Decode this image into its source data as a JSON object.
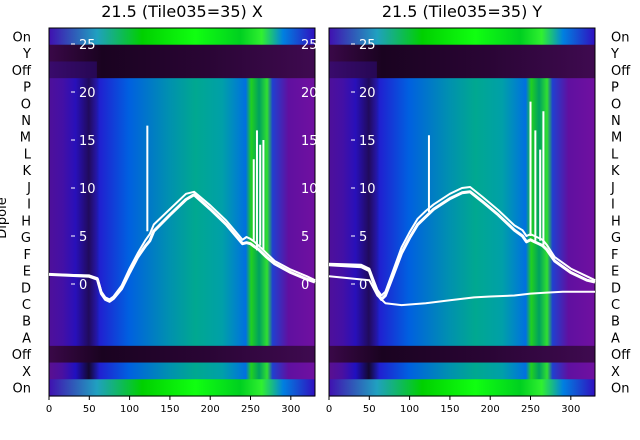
{
  "chart_data": {
    "type": "heatmap",
    "ylabel": "Dipole",
    "row_labels": [
      "On",
      "Y",
      "Off",
      "P",
      "O",
      "N",
      "M",
      "L",
      "K",
      "J",
      "I",
      "H",
      "G",
      "F",
      "E",
      "D",
      "C",
      "B",
      "A",
      "Off",
      "X",
      "On"
    ],
    "x_ticks": [
      0,
      50,
      100,
      150,
      200,
      250,
      300
    ],
    "xlim": [
      0,
      330
    ],
    "overlay_yticks": [
      0,
      5,
      10,
      15,
      20,
      25
    ],
    "panels": [
      {
        "title": "21.5 (Tile035=35) X",
        "curves": [
          {
            "x": [
              0,
              50,
              60,
              65,
              70,
              75,
              80,
              90,
              100,
              110,
              120,
              125,
              130,
              150,
              170,
              180,
              200,
              220,
              240,
              245,
              250,
              255,
              260,
              265,
              270,
              280,
              300,
              320,
              330
            ],
            "y": [
              1,
              0.8,
              0.5,
              -1,
              -1.6,
              -1.8,
              -1.5,
              -0.5,
              1.2,
              2.8,
              4.0,
              4.5,
              5.5,
              7.2,
              8.8,
              9.3,
              7.8,
              6.2,
              4.2,
              4.3,
              4.2,
              3.9,
              3.6,
              3.2,
              2.8,
              2.1,
              1.2,
              0.5,
              0.2
            ]
          },
          {
            "x": [
              0,
              50,
              60,
              65,
              70,
              75,
              80,
              90,
              100,
              110,
              120,
              125,
              130,
              150,
              170,
              180,
              200,
              220,
              240,
              245,
              250,
              255,
              260,
              265,
              270,
              280,
              300,
              320,
              330
            ],
            "y": [
              1,
              0.9,
              0.6,
              -0.8,
              -1.4,
              -1.6,
              -1.3,
              -0.2,
              1.6,
              3.2,
              4.6,
              5.2,
              6.2,
              7.8,
              9.4,
              9.6,
              8.2,
              6.6,
              4.6,
              4.9,
              4.7,
              4.4,
              4.0,
              3.6,
              3.2,
              2.4,
              1.5,
              0.8,
              0.4
            ]
          }
        ],
        "spikes": [
          {
            "x": 122,
            "y_top": 16.5,
            "y_base": 5.5
          },
          {
            "x": 254,
            "y_top": 13,
            "y_base": 4.5
          },
          {
            "x": 258,
            "y_top": 16,
            "y_base": 3.5
          },
          {
            "x": 262,
            "y_top": 14.5,
            "y_base": 4
          },
          {
            "x": 266,
            "y_top": 15,
            "y_base": 3.5
          }
        ]
      },
      {
        "title": "21.5 (Tile035=35) Y",
        "curves": [
          {
            "x": [
              0,
              40,
              50,
              55,
              60,
              65,
              70,
              80,
              90,
              100,
              110,
              120,
              130,
              150,
              165,
              175,
              190,
              210,
              230,
              240,
              245,
              250,
              255,
              260,
              265,
              270,
              280,
              300,
              320,
              330
            ],
            "y": [
              2,
              1.8,
              1.4,
              0.2,
              -1,
              -1.6,
              -1.2,
              1,
              3.2,
              4.8,
              6.2,
              7.0,
              7.8,
              8.9,
              9.5,
              9.6,
              8.6,
              7.2,
              5.6,
              5.0,
              4.4,
              4.6,
              4.4,
              4.2,
              4.0,
              3.6,
              2.4,
              1.2,
              0.4,
              0.2
            ]
          },
          {
            "x": [
              0,
              40,
              50,
              55,
              60,
              65,
              70,
              80,
              90,
              100,
              110,
              120,
              130,
              150,
              165,
              175,
              190,
              210,
              230,
              240,
              245,
              250,
              255,
              260,
              265,
              270,
              280,
              300,
              320,
              330
            ],
            "y": [
              2.1,
              2.0,
              1.6,
              0.5,
              -0.6,
              -1.2,
              -0.8,
              1.5,
              3.8,
              5.4,
              6.8,
              7.6,
              8.3,
              9.4,
              10.0,
              10.1,
              9.1,
              7.7,
              6.1,
              5.6,
              5.0,
              5.2,
              5.0,
              4.8,
              4.6,
              4.1,
              2.8,
              1.6,
              0.8,
              0.4
            ]
          },
          {
            "x": [
              0,
              50,
              60,
              70,
              90,
              120,
              150,
              180,
              200,
              230,
              250,
              270,
              290,
              310,
              330
            ],
            "y": [
              0.8,
              0.4,
              -1.2,
              -2.0,
              -2.2,
              -2.0,
              -1.7,
              -1.4,
              -1.3,
              -1.2,
              -1.0,
              -0.9,
              -0.8,
              -0.8,
              -0.8
            ]
          }
        ],
        "spikes": [
          {
            "x": 124,
            "y_top": 15.5,
            "y_base": 7.5
          },
          {
            "x": 250,
            "y_top": 19,
            "y_base": 5
          },
          {
            "x": 256,
            "y_top": 16,
            "y_base": 4.5
          },
          {
            "x": 262,
            "y_top": 14,
            "y_base": 4.5
          },
          {
            "x": 266,
            "y_top": 18,
            "y_base": 4
          }
        ]
      }
    ]
  }
}
